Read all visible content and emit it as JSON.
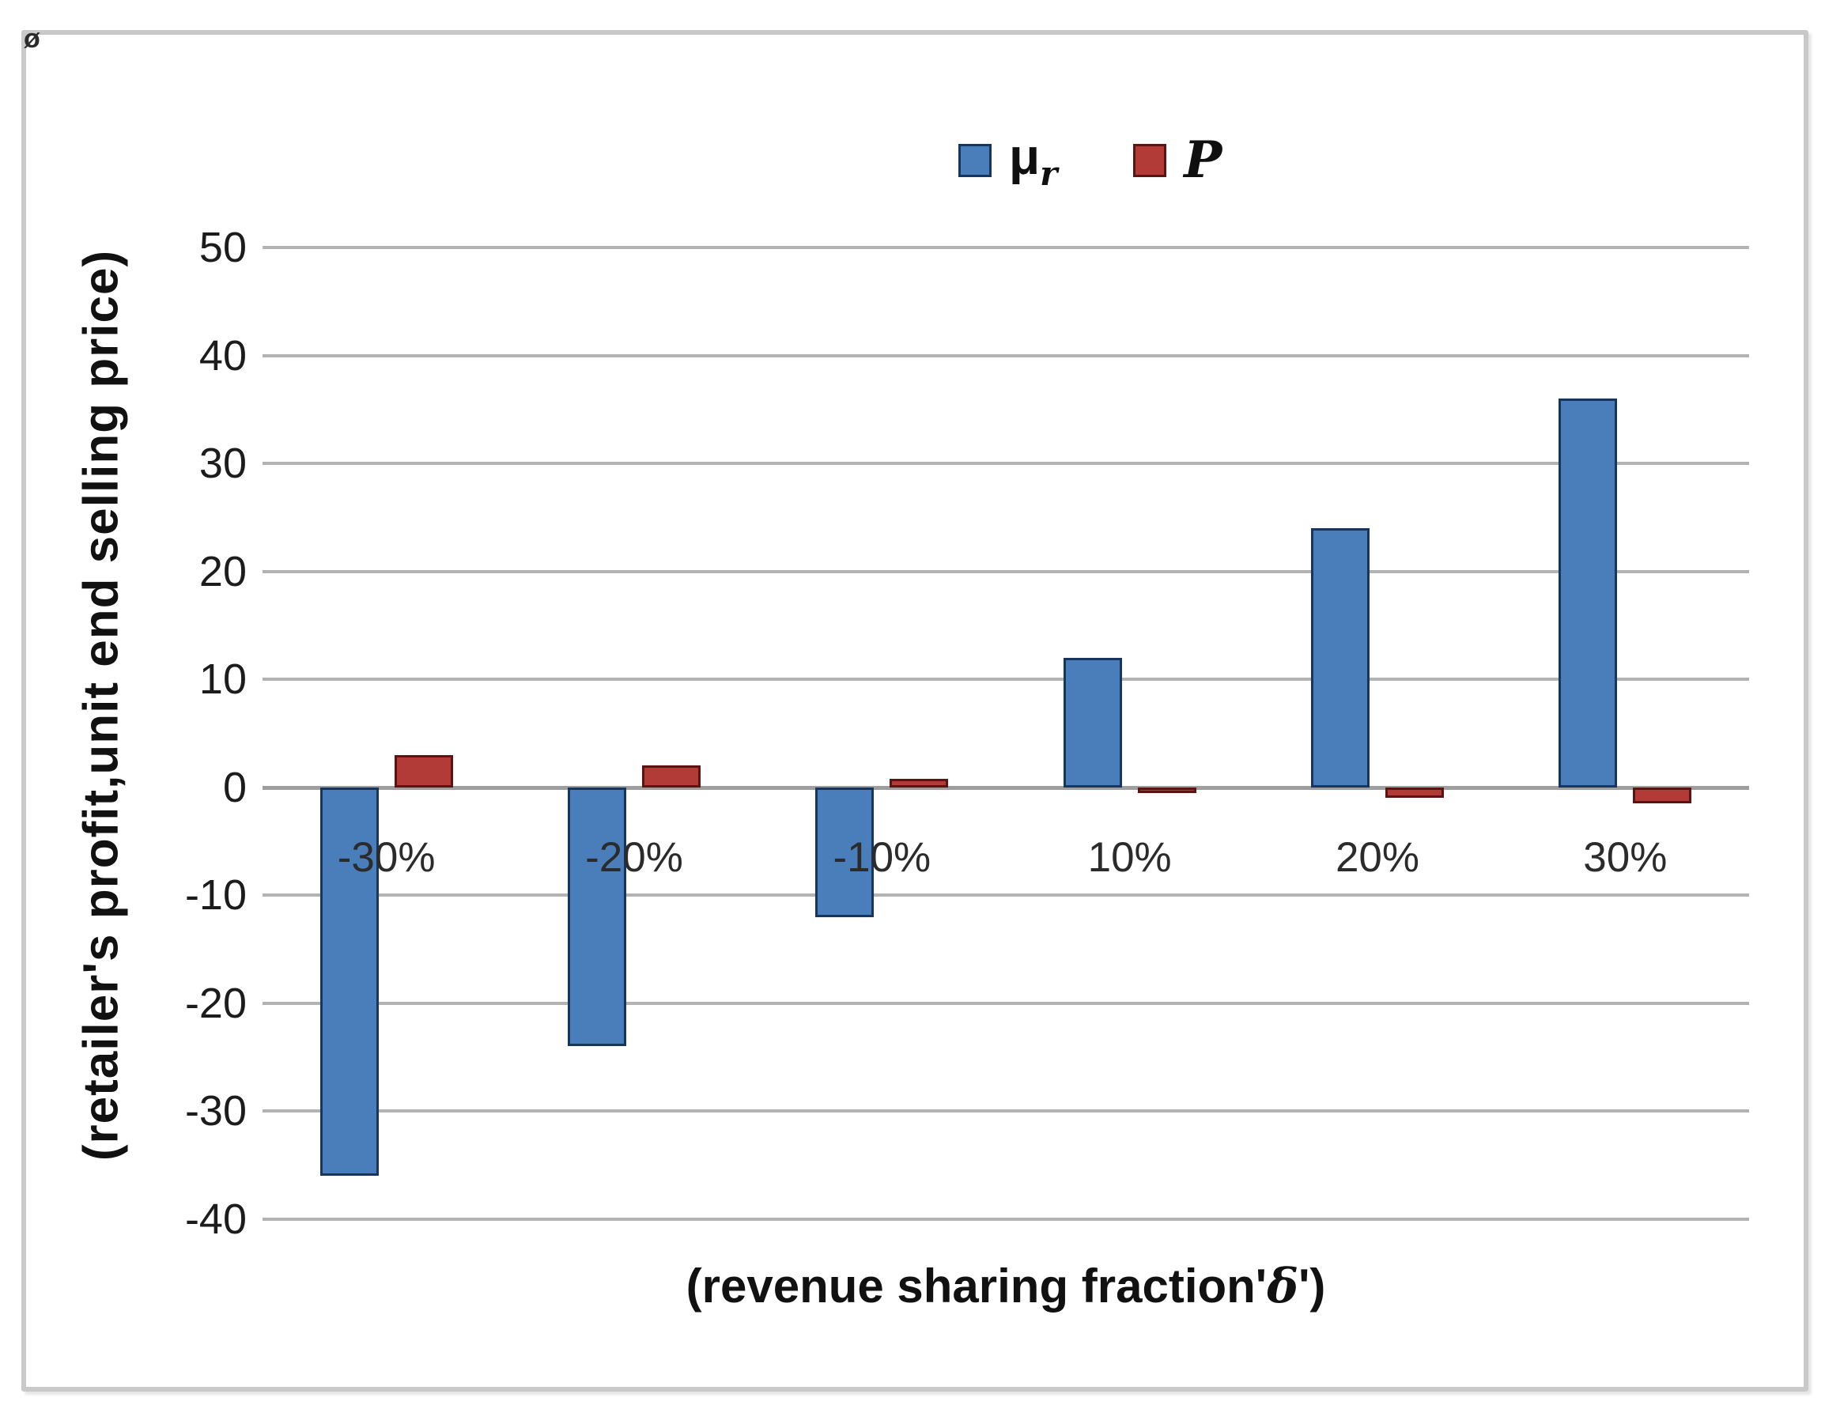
{
  "figure": {
    "corner_glyph": "ø"
  },
  "chart_data": {
    "type": "bar",
    "title": "",
    "categories": [
      "-30%",
      "-20%",
      "-10%",
      "10%",
      "20%",
      "30%"
    ],
    "series": [
      {
        "name": "μr",
        "color": "#4a7ebb",
        "border_color": "#17365d",
        "values": [
          -36,
          -24,
          -12,
          12,
          24,
          36
        ]
      },
      {
        "name": "P",
        "color": "#b23b38",
        "border_color": "#5c1412",
        "values": [
          3,
          2,
          0.8,
          -0.5,
          -1,
          -1.5
        ]
      }
    ],
    "legend": [
      {
        "label": "μ",
        "sub": "r"
      },
      {
        "label": "P",
        "sub": ""
      }
    ],
    "legend_position": "top-center",
    "xlabel": "(revenue sharing fraction'δ')",
    "xlabel_parts": {
      "pre": "(revenue sharing fraction'",
      "delta": "δ",
      "post": "')"
    },
    "ylabel": "(retailer's profit,unit end selling price)",
    "ylim": [
      -40,
      50
    ],
    "ytick_step": 10,
    "yticks": [
      "50",
      "40",
      "30",
      "20",
      "10",
      "0",
      "-10",
      "-20",
      "-30",
      "-40"
    ],
    "grid": true,
    "gridline_color": "#b3b3b3",
    "axis_text_color": "#1c1c1c"
  }
}
